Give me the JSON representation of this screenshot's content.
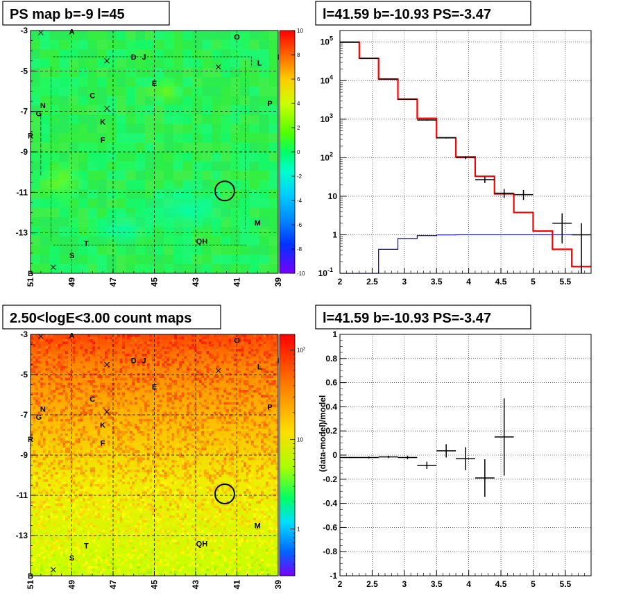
{
  "colors": {
    "model": "#ff0000",
    "ps": "#0000cc",
    "data": "#000000"
  },
  "chart_data": [
    {
      "id": "ps_map",
      "type": "heatmap",
      "title": "PS map b=-9 l=45",
      "x_ticks": [
        "51",
        "49",
        "47",
        "45",
        "43",
        "41",
        "39"
      ],
      "y_ticks": [
        "-3",
        "-5",
        "-7",
        "-9",
        "-11",
        "-13"
      ],
      "xlim": [
        51,
        39
      ],
      "ylim": [
        -15,
        -3
      ],
      "colorbar_ticks": [
        "10",
        "8",
        "6",
        "4",
        "2",
        "0",
        "-2",
        "-4",
        "-6",
        "-8",
        "-10"
      ],
      "colorbar_range": [
        -10,
        10
      ],
      "grid": true,
      "circle": {
        "l": 41.59,
        "b": -10.93
      },
      "source_labels": [
        {
          "t": "A",
          "l": 49.0,
          "b": -3.05
        },
        {
          "t": "O",
          "l": 41.0,
          "b": -3.3
        },
        {
          "t": "D",
          "l": 46.0,
          "b": -4.3
        },
        {
          "t": "J",
          "l": 45.5,
          "b": -4.3
        },
        {
          "t": "L",
          "l": 39.9,
          "b": -4.6
        },
        {
          "t": "I",
          "l": 39.0,
          "b": -4.3
        },
        {
          "t": "E",
          "l": 45.0,
          "b": -5.6
        },
        {
          "t": "C",
          "l": 48.0,
          "b": -6.2
        },
        {
          "t": "P",
          "l": 39.4,
          "b": -6.6
        },
        {
          "t": "N",
          "l": 50.4,
          "b": -6.7
        },
        {
          "t": "G",
          "l": 50.6,
          "b": -7.1
        },
        {
          "t": "K",
          "l": 47.5,
          "b": -7.5
        },
        {
          "t": "F",
          "l": 47.5,
          "b": -8.4
        },
        {
          "t": "R",
          "l": 51.0,
          "b": -8.2
        },
        {
          "t": "M",
          "l": 40.0,
          "b": -12.5
        },
        {
          "t": "T",
          "l": 48.3,
          "b": -13.5
        },
        {
          "t": "QH",
          "l": 42.7,
          "b": -13.4
        },
        {
          "t": "S",
          "l": 49.0,
          "b": -14.1
        },
        {
          "t": "B",
          "l": 51.0,
          "b": -15.0
        }
      ],
      "crosses": [
        {
          "l": 50.5,
          "b": -3.1
        },
        {
          "l": 47.3,
          "b": -4.5
        },
        {
          "l": 41.9,
          "b": -4.8
        },
        {
          "l": 47.3,
          "b": -6.85
        },
        {
          "l": 49.9,
          "b": -14.7
        }
      ]
    },
    {
      "id": "spectrum",
      "type": "line",
      "title": "l=41.59 b=-10.93 PS=-3.47",
      "x_ticks": [
        "2",
        "2.5",
        "3",
        "3.5",
        "4",
        "4.5",
        "5",
        "5.5"
      ],
      "y_ticks": [
        "10^-1",
        "1",
        "10",
        "10^2",
        "10^3",
        "10^4",
        "10^5"
      ],
      "xlim": [
        2,
        5.9
      ],
      "ylim": [
        0.1,
        200000
      ],
      "log_y": true,
      "grid": true,
      "bin_edges": [
        2.0,
        2.3,
        2.6,
        2.9,
        3.2,
        3.5,
        3.8,
        4.1,
        4.4,
        4.7,
        5.0,
        5.3,
        5.6,
        5.9
      ],
      "series": [
        {
          "values": [
            100000,
            38000,
            11000,
            3300,
            1050,
            330,
            105,
            33,
            11.5,
            3.8,
            1.25,
            0.42,
            0.15
          ]
        },
        {
          "values": [
            0.1,
            0.1,
            0.42,
            0.8,
            0.95,
            0.99,
            1.0,
            1.0,
            1.0,
            1.0,
            1.0,
            1.0,
            1.0
          ]
        }
      ],
      "data_points": [
        {
          "x": 2.15,
          "y": 100000,
          "yerr_lo": 100000,
          "yerr_hi": 100000
        },
        {
          "x": 2.45,
          "y": 38000,
          "yerr_lo": 38000,
          "yerr_hi": 38000
        },
        {
          "x": 2.75,
          "y": 11000,
          "yerr_lo": 11000,
          "yerr_hi": 11000
        },
        {
          "x": 3.05,
          "y": 3300,
          "yerr_lo": 3300,
          "yerr_hi": 3300
        },
        {
          "x": 3.35,
          "y": 950,
          "yerr_lo": 920,
          "yerr_hi": 980
        },
        {
          "x": 3.65,
          "y": 330,
          "yerr_lo": 315,
          "yerr_hi": 345
        },
        {
          "x": 3.95,
          "y": 100,
          "yerr_lo": 92,
          "yerr_hi": 108
        },
        {
          "x": 4.25,
          "y": 27,
          "yerr_lo": 22,
          "yerr_hi": 32
        },
        {
          "x": 4.55,
          "y": 12,
          "yerr_lo": 9,
          "yerr_hi": 15.5
        },
        {
          "x": 4.85,
          "y": 11,
          "yerr_lo": 8,
          "yerr_hi": 14.5
        },
        {
          "x": 5.45,
          "y": 2.0,
          "yerr_lo": 0.6,
          "yerr_hi": 3.6
        },
        {
          "x": 5.75,
          "y": 1.0,
          "yerr_lo": 0.1,
          "yerr_hi": 2.0
        }
      ]
    },
    {
      "id": "count_map",
      "type": "heatmap",
      "title": "2.50<logE<3.00 count maps",
      "x_ticks": [
        "51",
        "49",
        "47",
        "45",
        "43",
        "41",
        "39"
      ],
      "y_ticks": [
        "-3",
        "-5",
        "-7",
        "-9",
        "-11",
        "-13"
      ],
      "xlim": [
        51,
        39
      ],
      "ylim": [
        -15,
        -3
      ],
      "colorbar_ticks": [
        "10^2",
        "10",
        "1"
      ],
      "colorbar_range": [
        0.3,
        150
      ],
      "log_color": true,
      "grid": true,
      "circle": {
        "l": 41.59,
        "b": -10.93
      }
    },
    {
      "id": "residual",
      "type": "scatter",
      "title": "l=41.59 b=-10.93 PS=-3.47",
      "ylabel": "(data-model)/model",
      "x_ticks": [
        "2",
        "2.5",
        "3",
        "3.5",
        "4",
        "4.5",
        "5",
        "5.5"
      ],
      "y_ticks": [
        "1",
        "0.8",
        "0.6",
        "0.4",
        "0.2",
        "0",
        "-0.2",
        "-0.4",
        "-0.6",
        "-0.8",
        "-1"
      ],
      "xlim": [
        2,
        5.9
      ],
      "ylim": [
        -1,
        1
      ],
      "grid": true,
      "points": [
        {
          "x": 2.15,
          "y": -0.02,
          "xerr": 0.15,
          "yerr": 0.005
        },
        {
          "x": 2.45,
          "y": -0.02,
          "xerr": 0.15,
          "yerr": 0.008
        },
        {
          "x": 2.75,
          "y": -0.015,
          "xerr": 0.15,
          "yerr": 0.01
        },
        {
          "x": 3.05,
          "y": -0.02,
          "xerr": 0.15,
          "yerr": 0.015
        },
        {
          "x": 3.35,
          "y": -0.085,
          "xerr": 0.15,
          "yerr": 0.03
        },
        {
          "x": 3.65,
          "y": 0.035,
          "xerr": 0.15,
          "yerr": 0.055
        },
        {
          "x": 3.95,
          "y": -0.03,
          "xerr": 0.15,
          "yerr": 0.095
        },
        {
          "x": 4.25,
          "y": -0.19,
          "xerr": 0.15,
          "yerr": 0.155
        },
        {
          "x": 4.55,
          "y": 0.15,
          "xerr": 0.15,
          "yerr": 0.32
        }
      ]
    }
  ]
}
